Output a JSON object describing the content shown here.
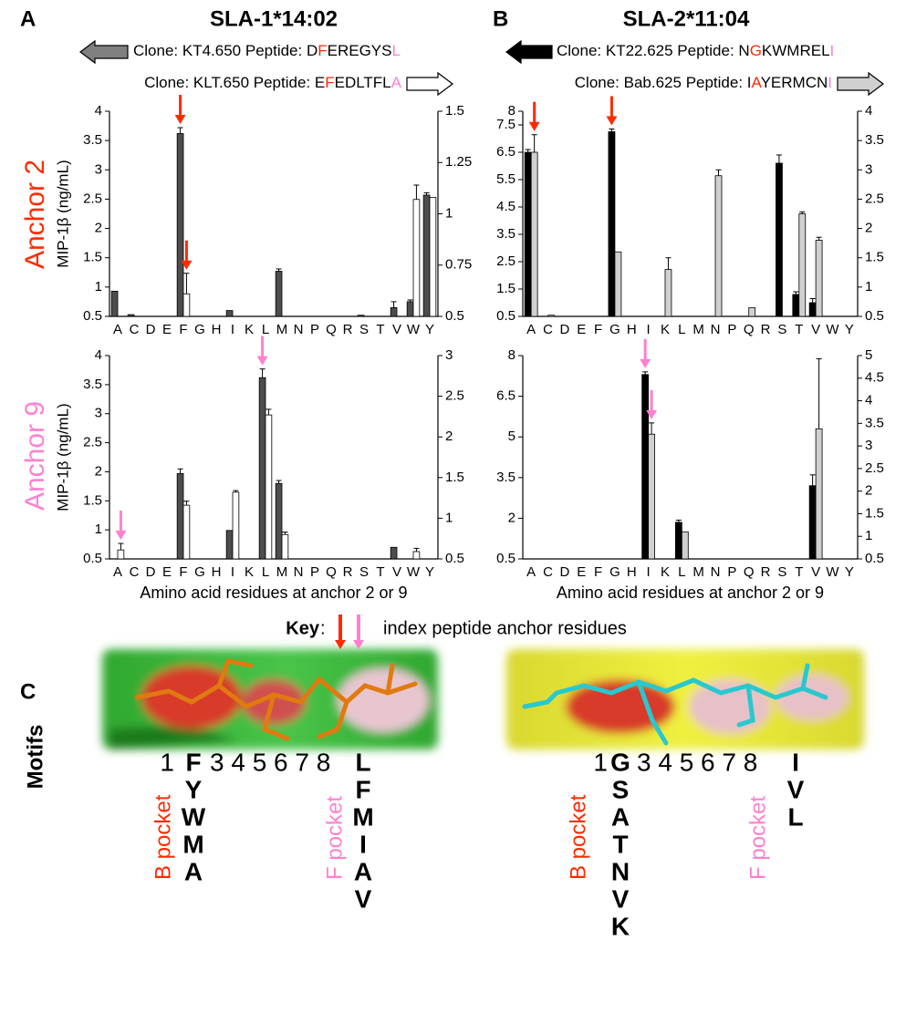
{
  "panels": [
    {
      "label": "A",
      "title": "SLA-1*14:02",
      "clones": [
        {
          "segments": [
            {
              "text": "Clone: KT4.650 Peptide: D",
              "color": "#000000"
            },
            {
              "text": "F",
              "color": "#ff2a00"
            },
            {
              "text": "EREGYS",
              "color": "#000000"
            },
            {
              "text": "L",
              "color": "#ff80d0"
            }
          ],
          "arrow": "left",
          "arrow_fill": "#808080"
        },
        {
          "segments": [
            {
              "text": "Clone: KLT.650 Peptide: E",
              "color": "#000000"
            },
            {
              "text": "F",
              "color": "#ff2a00"
            },
            {
              "text": "EDLTFL",
              "color": "#000000"
            },
            {
              "text": "A",
              "color": "#ff80d0"
            }
          ],
          "arrow": "right",
          "arrow_fill": "#ffffff"
        }
      ]
    },
    {
      "label": "B",
      "title": "SLA-2*11:04",
      "clones": [
        {
          "segments": [
            {
              "text": "Clone: KT22.625 Peptide: N",
              "color": "#000000"
            },
            {
              "text": "G",
              "color": "#ff2a00"
            },
            {
              "text": "KWMREL",
              "color": "#000000"
            },
            {
              "text": "I",
              "color": "#ff80d0"
            }
          ],
          "arrow": "left",
          "arrow_fill": "#000000"
        },
        {
          "segments": [
            {
              "text": "Clone: Bab.625 Peptide: I",
              "color": "#000000"
            },
            {
              "text": "A",
              "color": "#ff2a00"
            },
            {
              "text": "YERMCN",
              "color": "#000000"
            },
            {
              "text": "I",
              "color": "#ff80d0"
            }
          ],
          "arrow": "right",
          "arrow_fill": "#d0d0d0"
        }
      ]
    }
  ],
  "row_labels": [
    {
      "text": "Anchor 2",
      "color": "#ff2a00"
    },
    {
      "text": "Anchor 9",
      "color": "#ff80d0"
    }
  ],
  "key": {
    "label": "Key",
    "colon": ":",
    "text": "index peptide anchor residues",
    "arrow_colors": [
      "#ff2a00",
      "#ff80d0"
    ]
  },
  "motifs": {
    "label": "C",
    "title": "Motifs",
    "items": [
      {
        "first": "1",
        "anchor2": [
          "F",
          "Y",
          "W",
          "M",
          "A"
        ],
        "middle": "3 4 5 6 7 8",
        "anchor9": [
          "L",
          "F",
          "M",
          "I",
          "A",
          "V"
        ],
        "b_pocket": "B pocket",
        "f_pocket": "F pocket"
      },
      {
        "first": "1",
        "anchor2": [
          "G",
          "S",
          "A",
          "T",
          "N",
          "V",
          "K"
        ],
        "middle": "3 4 5 6 7 8",
        "anchor9": [
          "I",
          "V",
          "L"
        ],
        "b_pocket": "B pocket",
        "f_pocket": "F pocket"
      }
    ]
  },
  "chart_data": [
    {
      "type": "bar",
      "y_label": "MIP-1β (ng/mL)",
      "categories": [
        "A",
        "C",
        "D",
        "E",
        "F",
        "G",
        "H",
        "I",
        "K",
        "L",
        "M",
        "N",
        "P",
        "Q",
        "R",
        "S",
        "T",
        "V",
        "W",
        "Y"
      ],
      "ylim": [
        0.5,
        4
      ],
      "yticks": [
        0.5,
        1,
        1.5,
        2,
        2.5,
        3,
        3.5,
        4
      ],
      "y2lim": [
        0.5,
        1.5
      ],
      "y2ticks": [
        0.5,
        0.75,
        1,
        1.25,
        1.5
      ],
      "series": [
        {
          "color": "#4d4d4d",
          "values": [
            0.93,
            0.53,
            null,
            null,
            3.62,
            null,
            null,
            0.6,
            null,
            null,
            1.27,
            null,
            null,
            null,
            null,
            0.52,
            null,
            0.65,
            0.75,
            2.57
          ],
          "errors": [
            null,
            null,
            null,
            null,
            0.1,
            null,
            null,
            null,
            null,
            null,
            0.04,
            null,
            null,
            null,
            null,
            null,
            null,
            0.1,
            0.03,
            0.04
          ]
        },
        {
          "color": "#ffffff",
          "axis": "y2",
          "values": [
            null,
            null,
            null,
            null,
            0.61,
            null,
            null,
            null,
            null,
            null,
            null,
            null,
            null,
            null,
            null,
            null,
            null,
            null,
            1.07,
            1.08
          ],
          "errors": [
            null,
            null,
            null,
            null,
            0.1,
            null,
            null,
            null,
            null,
            null,
            null,
            null,
            null,
            null,
            null,
            null,
            null,
            null,
            0.07,
            null
          ]
        }
      ],
      "arrows": [
        {
          "category": "F",
          "series": 0,
          "color": "#ff2a00"
        },
        {
          "category": "F",
          "series": 1,
          "color": "#ff2a00"
        }
      ]
    },
    {
      "type": "bar",
      "categories": [
        "A",
        "C",
        "D",
        "E",
        "F",
        "G",
        "H",
        "I",
        "K",
        "L",
        "M",
        "N",
        "P",
        "Q",
        "R",
        "S",
        "T",
        "V",
        "W",
        "Y"
      ],
      "ylim": [
        0.5,
        8
      ],
      "yticks": [
        0.5,
        1.5,
        2.5,
        3.5,
        4.5,
        5.5,
        6.5,
        7.5,
        8
      ],
      "y2lim": [
        0.5,
        4
      ],
      "y2ticks": [
        0.5,
        1,
        1.5,
        2,
        2.5,
        3,
        3.5,
        4
      ],
      "series": [
        {
          "color": "#000000",
          "values": [
            6.5,
            null,
            null,
            null,
            null,
            7.25,
            null,
            null,
            null,
            null,
            null,
            null,
            null,
            null,
            null,
            6.1,
            1.3,
            1.0,
            null,
            null
          ],
          "errors": [
            0.1,
            null,
            null,
            null,
            null,
            0.1,
            null,
            null,
            null,
            null,
            null,
            null,
            null,
            null,
            null,
            0.3,
            0.1,
            0.15,
            null,
            null
          ]
        },
        {
          "color": "#d0d0d0",
          "axis": "y2",
          "values": [
            3.3,
            0.52,
            null,
            null,
            null,
            1.6,
            null,
            null,
            1.3,
            null,
            null,
            2.9,
            null,
            0.65,
            null,
            null,
            2.25,
            1.8,
            null,
            null
          ],
          "errors": [
            0.3,
            null,
            null,
            null,
            null,
            null,
            null,
            null,
            0.2,
            null,
            null,
            0.1,
            null,
            null,
            null,
            null,
            0.03,
            0.05,
            null,
            null
          ]
        }
      ],
      "arrows": [
        {
          "category": "A",
          "series": 1,
          "color": "#ff2a00"
        },
        {
          "category": "G",
          "series": 0,
          "color": "#ff2a00"
        }
      ]
    },
    {
      "type": "bar",
      "y_label": "MIP-1β (ng/mL)",
      "x_label": "Amino acid residues at anchor 2 or 9",
      "categories": [
        "A",
        "C",
        "D",
        "E",
        "F",
        "G",
        "H",
        "I",
        "K",
        "L",
        "M",
        "N",
        "P",
        "Q",
        "R",
        "S",
        "T",
        "V",
        "W",
        "Y"
      ],
      "ylim": [
        0.5,
        4
      ],
      "yticks": [
        0.5,
        1,
        1.5,
        2,
        2.5,
        3,
        3.5,
        4
      ],
      "y2lim": [
        0.5,
        3
      ],
      "y2ticks": [
        0.5,
        1,
        1.5,
        2,
        2.5,
        3
      ],
      "series": [
        {
          "color": "#4d4d4d",
          "values": [
            null,
            null,
            null,
            null,
            1.97,
            null,
            null,
            0.99,
            null,
            3.62,
            1.8,
            null,
            null,
            null,
            null,
            null,
            null,
            0.7,
            null,
            null
          ],
          "errors": [
            null,
            null,
            null,
            null,
            0.08,
            null,
            null,
            null,
            null,
            0.15,
            0.05,
            null,
            null,
            null,
            null,
            null,
            null,
            null,
            null,
            null
          ]
        },
        {
          "color": "#ffffff",
          "axis": "y2",
          "values": [
            0.61,
            null,
            null,
            null,
            1.16,
            null,
            null,
            1.32,
            null,
            2.27,
            0.8,
            null,
            null,
            null,
            null,
            null,
            null,
            null,
            0.59,
            null
          ],
          "errors": [
            0.08,
            null,
            null,
            null,
            0.05,
            null,
            null,
            0.02,
            null,
            0.07,
            0.03,
            null,
            null,
            null,
            null,
            null,
            null,
            null,
            0.04,
            null
          ]
        }
      ],
      "arrows": [
        {
          "category": "A",
          "series": 1,
          "color": "#ff80d0"
        },
        {
          "category": "L",
          "series": 0,
          "color": "#ff80d0"
        }
      ]
    },
    {
      "type": "bar",
      "x_label": "Amino acid residues at anchor 2 or 9",
      "categories": [
        "A",
        "C",
        "D",
        "E",
        "F",
        "G",
        "H",
        "I",
        "K",
        "L",
        "M",
        "N",
        "P",
        "Q",
        "R",
        "S",
        "T",
        "V",
        "W",
        "Y"
      ],
      "ylim": [
        0.5,
        8
      ],
      "yticks": [
        0.5,
        2,
        3.5,
        5,
        6.5,
        8
      ],
      "y2lim": [
        0.5,
        5
      ],
      "y2ticks": [
        0.5,
        1,
        1.5,
        2,
        2.5,
        3,
        3.5,
        4,
        4.5,
        5
      ],
      "series": [
        {
          "color": "#000000",
          "values": [
            null,
            null,
            null,
            null,
            null,
            null,
            null,
            7.3,
            null,
            1.85,
            null,
            null,
            null,
            null,
            null,
            null,
            null,
            3.2,
            null,
            null
          ],
          "errors": [
            null,
            null,
            null,
            null,
            null,
            null,
            null,
            0.1,
            null,
            0.08,
            null,
            null,
            null,
            null,
            null,
            null,
            null,
            0.4,
            null,
            null
          ]
        },
        {
          "color": "#d0d0d0",
          "axis": "y2",
          "values": [
            null,
            null,
            null,
            null,
            null,
            null,
            null,
            3.26,
            null,
            1.1,
            null,
            null,
            null,
            null,
            null,
            null,
            null,
            3.38,
            null,
            null
          ],
          "errors": [
            null,
            null,
            null,
            null,
            null,
            null,
            null,
            0.25,
            null,
            null,
            null,
            null,
            null,
            null,
            null,
            null,
            null,
            1.55,
            null,
            null
          ]
        }
      ],
      "arrows": [
        {
          "category": "I",
          "series": 0,
          "color": "#ff80d0"
        },
        {
          "category": "I",
          "series": 1,
          "color": "#ff80d0"
        }
      ]
    }
  ]
}
